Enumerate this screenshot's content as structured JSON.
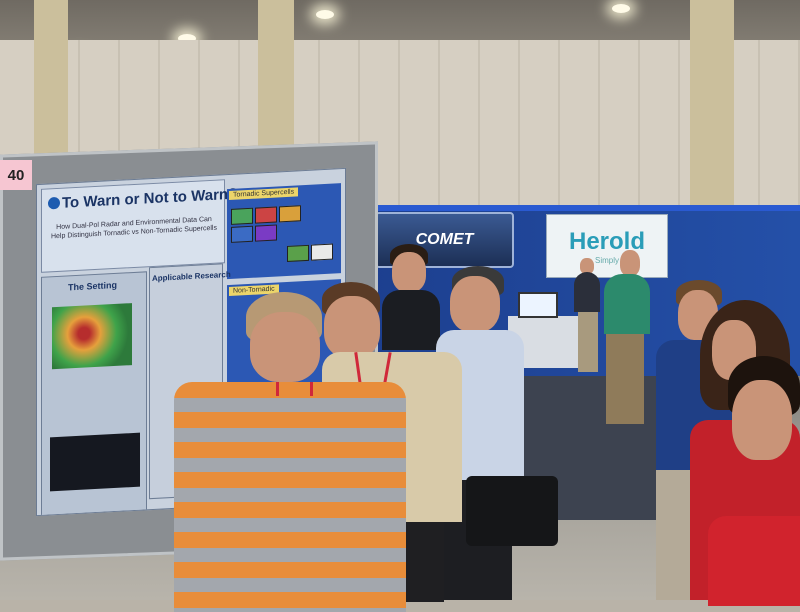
{
  "booth": {
    "board_number": "40",
    "sponsor_sign_1": "COMET",
    "sponsor_sign_2": "Herold",
    "sponsor_sign_2_tagline": "Simply"
  },
  "poster": {
    "title": "To Warn or Not to Warn?",
    "subtitle": "How Dual-Pol Radar and Environmental Data Can Help Distinguish Tornadic vs Non-Tornadic Supercells",
    "section_1": "The Setting",
    "section_2": "Applicable Research",
    "tag_1": "Tornadic Supercells",
    "tag_2": "Non-Tornadic"
  },
  "colors": {
    "booth_blue": "#2450a8",
    "poster_title": "#1b3465",
    "shirt_orange": "#e88d3a",
    "lanyard_red": "#d0283a"
  }
}
